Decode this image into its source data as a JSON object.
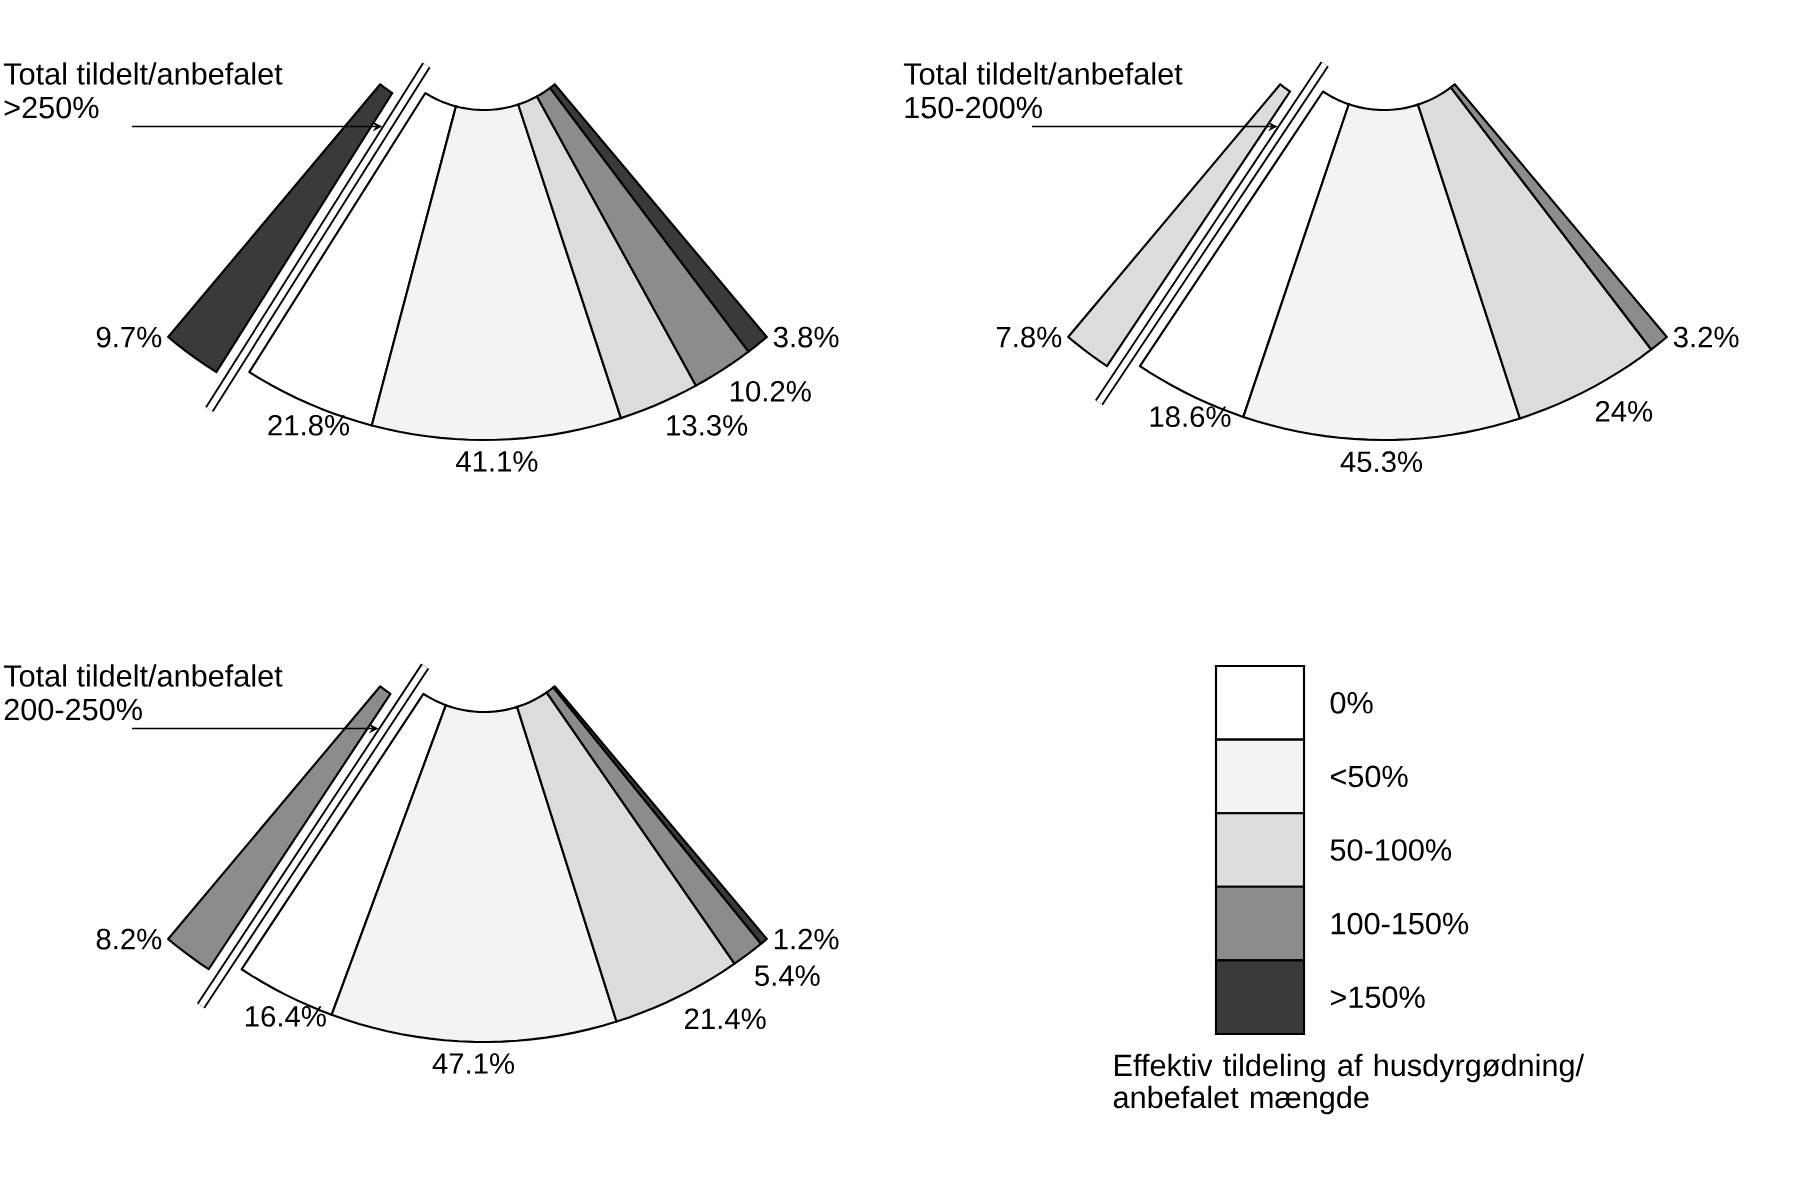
{
  "chart_data": [
    {
      "type": "donut",
      "title": "Total tildelt/anbefalet",
      "subtitle": ">250%",
      "categories": [
        null,
        null,
        null,
        null,
        null,
        null
      ],
      "values": [
        9.7,
        21.8,
        41.1,
        13.3,
        10.2,
        3.8
      ],
      "value_labels": [
        "9.7%",
        "21.8%",
        "41.1%",
        "13.3%",
        "10.2%",
        "3.8%"
      ],
      "colors": [
        "#3a3a3a",
        "#ffffff",
        "#f3f3f3",
        "#dcdcdc",
        "#8c8c8c",
        "#3a3a3a"
      ]
    },
    {
      "type": "donut",
      "title": "Total tildelt/anbefalet",
      "subtitle": "150-200%",
      "categories": [
        null,
        null,
        null,
        null,
        null
      ],
      "values": [
        7.8,
        18.6,
        45.3,
        24,
        3.2
      ],
      "value_labels": [
        "7.8%",
        "18.6%",
        "45.3%",
        "24%",
        "3.2%"
      ],
      "colors": [
        "#dcdcdc",
        "#ffffff",
        "#f3f3f3",
        "#dcdcdc",
        "#8c8c8c"
      ]
    },
    {
      "type": "donut",
      "title": "Total tildelt/anbefalet",
      "subtitle": "200-250%",
      "categories": [
        null,
        null,
        null,
        null,
        null,
        null
      ],
      "values": [
        8.2,
        16.4,
        47.1,
        21.4,
        5.4,
        1.2
      ],
      "value_labels": [
        "8.2%",
        "16.4%",
        "47.1%",
        "21.4%",
        "5.4%",
        "1.2%"
      ],
      "colors": [
        "#8c8c8c",
        "#ffffff",
        "#f3f3f3",
        "#dcdcdc",
        "#8c8c8c",
        "#3a3a3a"
      ]
    },
    {
      "type": "other",
      "categories": [
        "0%",
        "<50%",
        "50-100%",
        "100-150%",
        ">150%"
      ],
      "colors": [
        "#ffffff",
        "#f3f3f3",
        "#dcdcdc",
        "#8c8c8c",
        "#3a3a3a"
      ],
      "xlabel": "Effektiv tildeling af husdyrgødning/ anbefalet mængde"
    }
  ]
}
